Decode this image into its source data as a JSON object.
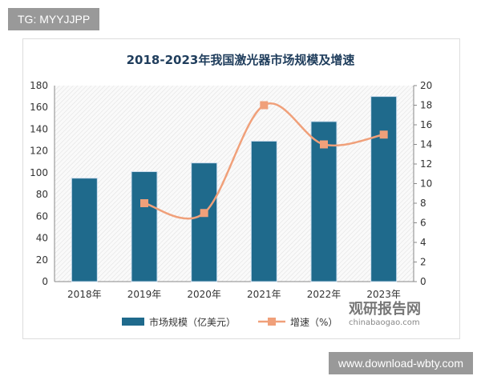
{
  "watermarks": {
    "tg": "TG: MYYJJPP",
    "site": "www.download-wbty.com",
    "logo_cn": "观研报告网",
    "logo_en": "chinabaogao.com"
  },
  "chart_data": {
    "type": "bar",
    "title": "2018-2023年我国激光器市场规模及增速",
    "categories": [
      "2018年",
      "2019年",
      "2020年",
      "2021年",
      "2022年",
      "2023年"
    ],
    "series": [
      {
        "name": "市场规模（亿美元）",
        "type": "bar",
        "axis": "left",
        "values": [
          95,
          101,
          109,
          129,
          147,
          170
        ],
        "color": "#1f6a8c"
      },
      {
        "name": "增速（%）",
        "type": "line",
        "axis": "right",
        "values": [
          null,
          8,
          7,
          18,
          14,
          15
        ],
        "color": "#f0a07a"
      }
    ],
    "ylim_left": [
      0,
      180
    ],
    "yticks_left": [
      0,
      20,
      40,
      60,
      80,
      100,
      120,
      140,
      160,
      180
    ],
    "ylim_right": [
      0,
      20
    ],
    "yticks_right": [
      0,
      2,
      4,
      6,
      8,
      10,
      12,
      14,
      16,
      18,
      20
    ],
    "legend": "bottom",
    "grid": false
  }
}
